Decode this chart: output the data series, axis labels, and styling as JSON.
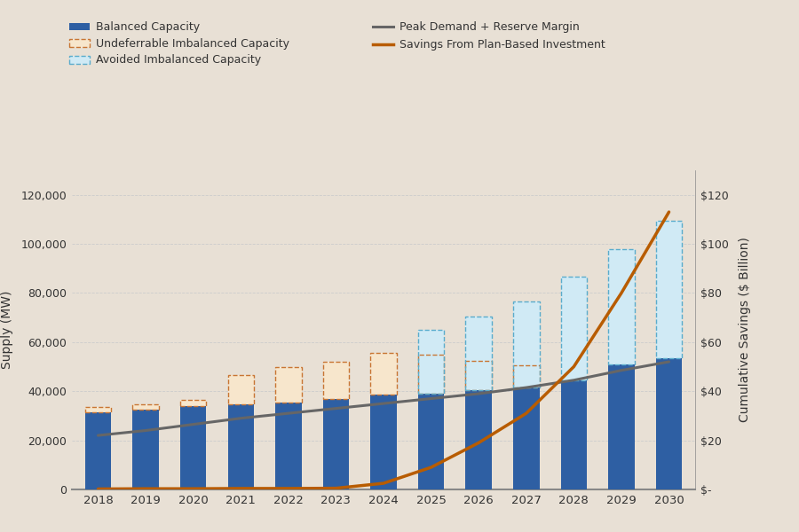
{
  "years": [
    2018,
    2019,
    2020,
    2021,
    2022,
    2023,
    2024,
    2025,
    2026,
    2027,
    2028,
    2029,
    2030
  ],
  "balanced_capacity": [
    31500,
    32500,
    34000,
    34500,
    35500,
    37000,
    38500,
    39000,
    40500,
    41500,
    44500,
    51000,
    53500
  ],
  "undeferrable_imbalanced": [
    2000,
    2000,
    2500,
    12000,
    14500,
    15000,
    17000,
    16000,
    12000,
    9000,
    0,
    0,
    0
  ],
  "avoided_imbalanced": [
    0,
    0,
    0,
    0,
    0,
    0,
    0,
    26000,
    30000,
    35000,
    42000,
    47000,
    56000
  ],
  "peak_demand": [
    22000,
    24000,
    26500,
    29000,
    31000,
    33000,
    35000,
    37000,
    39000,
    41500,
    44500,
    48500,
    52000
  ],
  "savings_bn": [
    0.2,
    0.3,
    0.3,
    0.4,
    0.4,
    0.5,
    2.5,
    9.0,
    19.0,
    31.0,
    50.0,
    80.0,
    113.0
  ],
  "background_color": "#e8e0d5",
  "bar_blue": "#2e5fa3",
  "bar_orange_fill": "#f7e6cc",
  "bar_orange_edge": "#c87533",
  "bar_light_blue_fill": "#d0eaf5",
  "bar_light_blue_edge": "#5aaccc",
  "line_gray": "#666666",
  "line_orange": "#b85c00",
  "grid_color": "#cccccc",
  "spine_color": "#aaaaaa",
  "text_color": "#333333",
  "ylabel_left": "Supply (MW)",
  "ylabel_right": "Cumulative Savings ($ Billion)",
  "ylim_left": [
    0,
    130000
  ],
  "ylim_right": [
    0,
    130
  ],
  "yticks_left": [
    0,
    20000,
    40000,
    60000,
    80000,
    100000,
    120000
  ],
  "yticks_right": [
    0,
    20,
    40,
    60,
    80,
    100,
    120
  ],
  "yticks_right_labels": [
    "$-",
    "$20",
    "$40",
    "$60",
    "$80",
    "$100",
    "$120"
  ],
  "legend1_label": "Balanced Capacity",
  "legend2_label": "Undeferrable Imbalanced Capacity",
  "legend3_label": "Avoided Imbalanced Capacity",
  "legend4_label": "Peak Demand + Reserve Margin",
  "legend5_label": "Savings From Plan-Based Investment",
  "bar_width": 0.55
}
